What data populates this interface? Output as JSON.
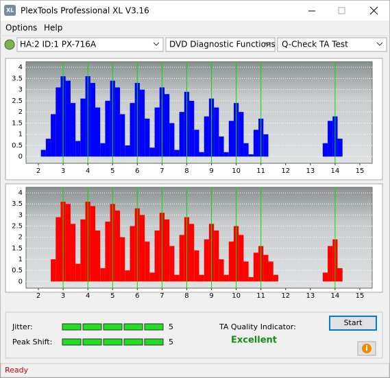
{
  "window": {
    "title": "PlexTools Professional XL V3.16"
  },
  "menu": [
    "Options",
    "Help"
  ],
  "toolbar": {
    "drive": "HA:2 ID:1  PX-716A",
    "function": "DVD Diagnostic Functions",
    "test": "Q-Check TA Test"
  },
  "chart_data": [
    {
      "type": "histogram",
      "color": "#0000ff",
      "xlim": [
        1.5,
        15.5
      ],
      "ylim": [
        -0.3,
        4.25
      ],
      "xticks": [
        2,
        3,
        4,
        5,
        6,
        7,
        8,
        9,
        10,
        11,
        12,
        13,
        14,
        15
      ],
      "yticks": [
        0,
        0.5,
        1,
        1.5,
        2,
        2.5,
        3,
        3.5,
        4
      ],
      "grid": true,
      "markers": [
        3,
        4,
        5,
        6,
        7,
        8,
        9,
        10,
        11,
        14
      ],
      "marker_color": "#00e000",
      "x": [
        2,
        2.2,
        2.4,
        2.6,
        2.8,
        3,
        3.2,
        3.4,
        3.6,
        3.8,
        4,
        4.2,
        4.4,
        4.6,
        4.8,
        5,
        5.2,
        5.4,
        5.6,
        5.8,
        6,
        6.2,
        6.4,
        6.6,
        6.8,
        7,
        7.2,
        7.4,
        7.6,
        7.8,
        8,
        8.2,
        8.4,
        8.6,
        8.8,
        9,
        9.2,
        9.4,
        9.6,
        9.8,
        10,
        10.2,
        10.4,
        10.6,
        10.8,
        11,
        11.2,
        11.4,
        11.6,
        11.8,
        12,
        12.2,
        12.4,
        12.6,
        12.8,
        13,
        13.2,
        13.4,
        13.6,
        13.8,
        14,
        14.2
      ],
      "values": [
        0,
        0.3,
        0.8,
        1.9,
        3.1,
        3.6,
        3.4,
        2.4,
        0.7,
        2.6,
        3.6,
        3.3,
        2.2,
        0.6,
        2.5,
        3.4,
        3.1,
        1.9,
        0.5,
        2.4,
        3.3,
        3.0,
        1.7,
        0.4,
        2.2,
        3.1,
        2.8,
        1.5,
        0.3,
        2.0,
        2.9,
        2.5,
        1.2,
        0.2,
        1.8,
        2.6,
        2.2,
        0.9,
        0.2,
        1.6,
        2.4,
        2.0,
        0.6,
        0.1,
        1.2,
        1.7,
        1.0,
        0,
        0,
        0,
        0,
        0,
        0,
        0,
        0,
        0,
        0,
        0,
        0.6,
        1.6,
        1.8,
        0.8
      ]
    },
    {
      "type": "histogram",
      "color": "#ff0000",
      "xlim": [
        1.5,
        15.5
      ],
      "ylim": [
        -0.3,
        4.25
      ],
      "xticks": [
        2,
        3,
        4,
        5,
        6,
        7,
        8,
        9,
        10,
        11,
        12,
        13,
        14,
        15
      ],
      "yticks": [
        0,
        0.5,
        1,
        1.5,
        2,
        2.5,
        3,
        3.5,
        4
      ],
      "grid": true,
      "markers": [
        3,
        4,
        5,
        6,
        7,
        8,
        9,
        10,
        11,
        14
      ],
      "marker_color": "#00e000",
      "x": [
        2,
        2.2,
        2.4,
        2.6,
        2.8,
        3,
        3.2,
        3.4,
        3.6,
        3.8,
        4,
        4.2,
        4.4,
        4.6,
        4.8,
        5,
        5.2,
        5.4,
        5.6,
        5.8,
        6,
        6.2,
        6.4,
        6.6,
        6.8,
        7,
        7.2,
        7.4,
        7.6,
        7.8,
        8,
        8.2,
        8.4,
        8.6,
        8.8,
        9,
        9.2,
        9.4,
        9.6,
        9.8,
        10,
        10.2,
        10.4,
        10.6,
        10.8,
        11,
        11.2,
        11.4,
        11.6,
        11.8,
        12,
        12.2,
        12.4,
        12.6,
        12.8,
        13,
        13.2,
        13.4,
        13.6,
        13.8,
        14,
        14.2
      ],
      "values": [
        0,
        0,
        0,
        1.0,
        2.9,
        3.6,
        3.5,
        2.6,
        0.8,
        2.8,
        3.6,
        3.4,
        2.3,
        0.6,
        2.7,
        3.5,
        3.2,
        2.0,
        0.5,
        2.5,
        3.3,
        3.0,
        1.8,
        0.4,
        2.3,
        3.1,
        2.8,
        1.6,
        0.3,
        2.1,
        2.9,
        2.6,
        1.4,
        0.3,
        1.9,
        2.6,
        2.3,
        1.0,
        0.3,
        1.8,
        2.5,
        2.1,
        0.9,
        0.2,
        1.3,
        1.6,
        1.2,
        0.9,
        0.3,
        0,
        0,
        0,
        0,
        0,
        0,
        0,
        0,
        0,
        0.4,
        1.6,
        1.9,
        0.6
      ]
    }
  ],
  "metrics": {
    "jitter": {
      "label": "Jitter:",
      "value": 5
    },
    "peak_shift": {
      "label": "Peak Shift:",
      "value": 5
    },
    "quality_label": "TA Quality Indicator:",
    "quality": "Excellent"
  },
  "buttons": {
    "start": "Start"
  },
  "status": "Ready"
}
